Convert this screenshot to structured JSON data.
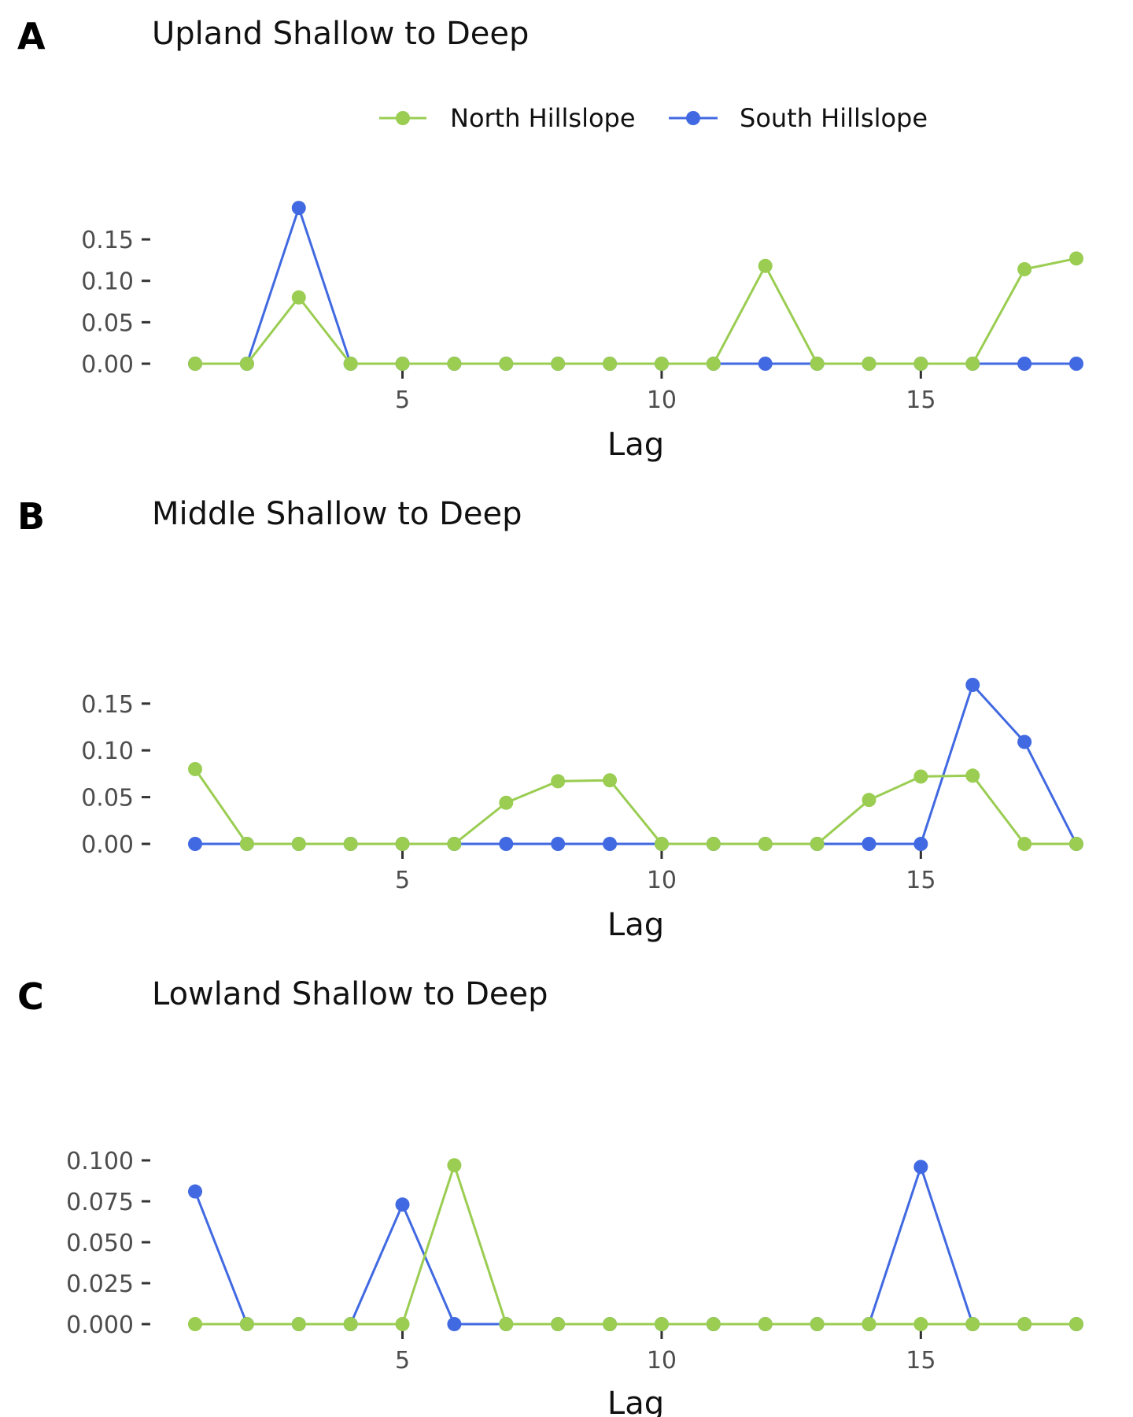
{
  "legend": {
    "position": "top",
    "entries": [
      {
        "name": "North Hillslope",
        "color": "#9ACD52"
      },
      {
        "name": "South Hillslope",
        "color": "#4169E1"
      }
    ]
  },
  "chart_data": [
    {
      "type": "line",
      "panel": "A",
      "title": "Upland Shallow to Deep",
      "xlabel": "Lag",
      "ylabel": "",
      "xlim": [
        1,
        18
      ],
      "ylim": [
        0,
        0.19
      ],
      "x_ticks": [
        5,
        10,
        15
      ],
      "x_tick_labels": [
        "5",
        "10",
        "15"
      ],
      "y_ticks": [
        0,
        0.05,
        0.1,
        0.15
      ],
      "y_tick_labels": [
        "0.00",
        "0.05",
        "0.10",
        "0.15"
      ],
      "grid": false,
      "x": [
        1,
        2,
        3,
        4,
        5,
        6,
        7,
        8,
        9,
        10,
        11,
        12,
        13,
        14,
        15,
        16,
        17,
        18
      ],
      "series": [
        {
          "name": "South Hillslope",
          "color": "#4169E1",
          "values": [
            0,
            0,
            0.188,
            0,
            0,
            0,
            0,
            0,
            0,
            0,
            0,
            0,
            0,
            0,
            0,
            0,
            0,
            0
          ]
        },
        {
          "name": "North Hillslope",
          "color": "#9ACD52",
          "values": [
            0,
            0,
            0.08,
            0,
            0,
            0,
            0,
            0,
            0,
            0,
            0,
            0.118,
            0,
            0,
            0,
            0,
            0.114,
            0.127
          ]
        }
      ]
    },
    {
      "type": "line",
      "panel": "B",
      "title": "Middle Shallow to Deep",
      "xlabel": "Lag",
      "ylabel": "",
      "xlim": [
        1,
        18
      ],
      "ylim": [
        0,
        0.17
      ],
      "x_ticks": [
        5,
        10,
        15
      ],
      "x_tick_labels": [
        "5",
        "10",
        "15"
      ],
      "y_ticks": [
        0,
        0.05,
        0.1,
        0.15
      ],
      "y_tick_labels": [
        "0.00",
        "0.05",
        "0.10",
        "0.15"
      ],
      "grid": false,
      "x": [
        1,
        2,
        3,
        4,
        5,
        6,
        7,
        8,
        9,
        10,
        11,
        12,
        13,
        14,
        15,
        16,
        17,
        18
      ],
      "series": [
        {
          "name": "South Hillslope",
          "color": "#4169E1",
          "values": [
            0,
            0,
            0,
            0,
            0,
            0,
            0,
            0,
            0,
            0,
            0,
            0,
            0,
            0,
            0,
            0.17,
            0.109,
            0
          ]
        },
        {
          "name": "North Hillslope",
          "color": "#9ACD52",
          "values": [
            0.08,
            0,
            0,
            0,
            0,
            0,
            0.044,
            0.067,
            0.068,
            0,
            0,
            0,
            0,
            0.047,
            0.072,
            0.073,
            0,
            0
          ]
        }
      ]
    },
    {
      "type": "line",
      "panel": "C",
      "title": "Lowland Shallow to Deep",
      "xlabel": "Lag",
      "ylabel": "",
      "xlim": [
        1,
        18
      ],
      "ylim": [
        0,
        0.1
      ],
      "x_ticks": [
        5,
        10,
        15
      ],
      "x_tick_labels": [
        "5",
        "10",
        "15"
      ],
      "y_ticks": [
        0,
        0.025,
        0.05,
        0.075,
        0.1
      ],
      "y_tick_labels": [
        "0.000",
        "0.025",
        "0.050",
        "0.075",
        "0.100"
      ],
      "grid": false,
      "x": [
        1,
        2,
        3,
        4,
        5,
        6,
        7,
        8,
        9,
        10,
        11,
        12,
        13,
        14,
        15,
        16,
        17,
        18
      ],
      "series": [
        {
          "name": "South Hillslope",
          "color": "#4169E1",
          "values": [
            0.081,
            0,
            0,
            0,
            0.073,
            0,
            0,
            0,
            0,
            0,
            0,
            0,
            0,
            0,
            0.096,
            0,
            0,
            0
          ]
        },
        {
          "name": "North Hillslope",
          "color": "#9ACD52",
          "values": [
            0,
            0,
            0,
            0,
            0,
            0.097,
            0,
            0,
            0,
            0,
            0,
            0,
            0,
            0,
            0,
            0,
            0,
            0
          ]
        }
      ]
    }
  ]
}
